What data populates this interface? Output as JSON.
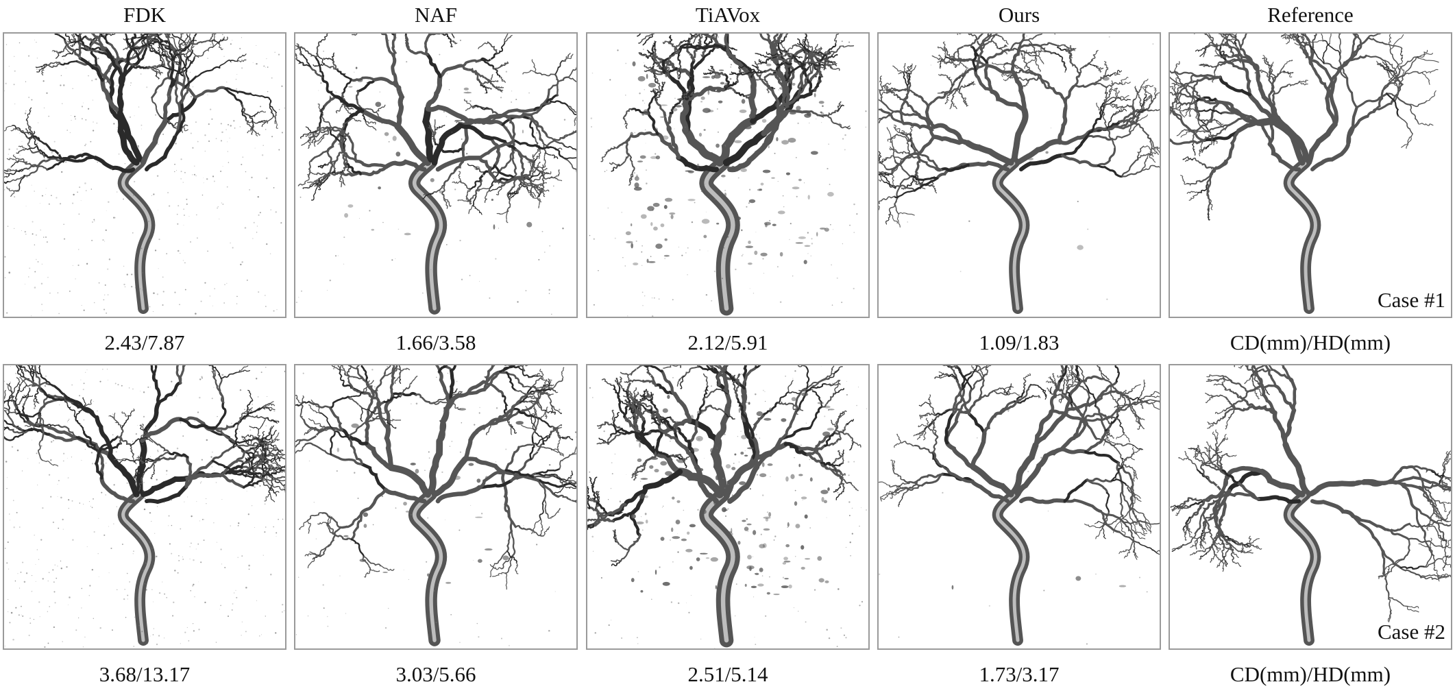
{
  "figure": {
    "columns": [
      "FDK",
      "NAF",
      "TiAVox",
      "Ours",
      "Reference"
    ],
    "rows": [
      {
        "case_label": "Case #1",
        "metrics": [
          "2.43/7.87",
          "1.66/3.58",
          "2.12/5.91",
          "1.09/1.83"
        ],
        "reference_metric_label": "CD(mm)/HD(mm)"
      },
      {
        "case_label": "Case #2",
        "metrics": [
          "3.68/13.17",
          "3.03/5.66",
          "2.51/5.14",
          "1.73/3.17"
        ],
        "reference_metric_label": "CD(mm)/HD(mm)"
      }
    ]
  },
  "style": {
    "border_color": "#9a9a9a",
    "vessel_color": "#555555",
    "vessel_dark": "#2a2a2a",
    "noise_color": "#777777"
  }
}
